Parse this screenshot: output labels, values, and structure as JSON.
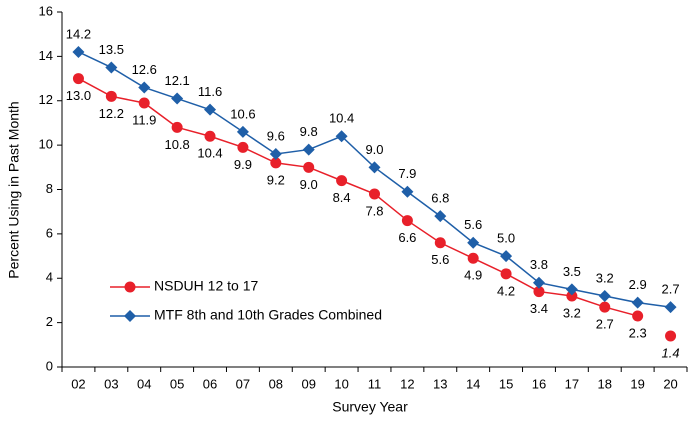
{
  "chart_data": {
    "type": "line",
    "x_label": "Survey Year",
    "y_label": "Percent Using in Past Month",
    "categories": [
      "02",
      "03",
      "04",
      "05",
      "06",
      "07",
      "08",
      "09",
      "10",
      "11",
      "12",
      "13",
      "14",
      "15",
      "16",
      "17",
      "18",
      "19",
      "20"
    ],
    "ylim": [
      0,
      16
    ],
    "yticks": [
      0,
      2,
      4,
      6,
      8,
      10,
      12,
      14,
      16
    ],
    "grid": false,
    "legend": "lower left",
    "series": [
      {
        "name": "NSDUH 12 to 17",
        "color": "#e8202a",
        "marker": "circle",
        "label_position": "below",
        "break_before": [
          "20"
        ],
        "italic_labels": [
          "20"
        ],
        "values": [
          13.0,
          12.2,
          11.9,
          10.8,
          10.4,
          9.9,
          9.2,
          9.0,
          8.4,
          7.8,
          6.6,
          5.6,
          4.9,
          4.2,
          3.4,
          3.2,
          2.7,
          2.3,
          1.4
        ],
        "value_labels": [
          "13.0",
          "12.2",
          "11.9",
          "10.8",
          "10.4",
          "9.9",
          "9.2",
          "9.0",
          "8.4",
          "7.8",
          "6.6",
          "5.6",
          "4.9",
          "4.2",
          "3.4",
          "3.2",
          "2.7",
          "2.3",
          "1.4"
        ]
      },
      {
        "name": "MTF 8th and 10th Grades Combined",
        "color": "#1f5fa8",
        "marker": "diamond",
        "label_position": "above",
        "values": [
          14.2,
          13.5,
          12.6,
          12.1,
          11.6,
          10.6,
          9.6,
          9.8,
          10.4,
          9.0,
          7.9,
          6.8,
          5.6,
          5.0,
          3.8,
          3.5,
          3.2,
          2.9,
          2.7
        ],
        "value_labels": [
          "14.2",
          "13.5",
          "12.6",
          "12.1",
          "11.6",
          "10.6",
          "9.6",
          "9.8",
          "10.4",
          "9.0",
          "7.9",
          "6.8",
          "5.6",
          "5.0",
          "3.8",
          "3.5",
          "3.2",
          "2.9",
          "2.7"
        ]
      }
    ]
  }
}
